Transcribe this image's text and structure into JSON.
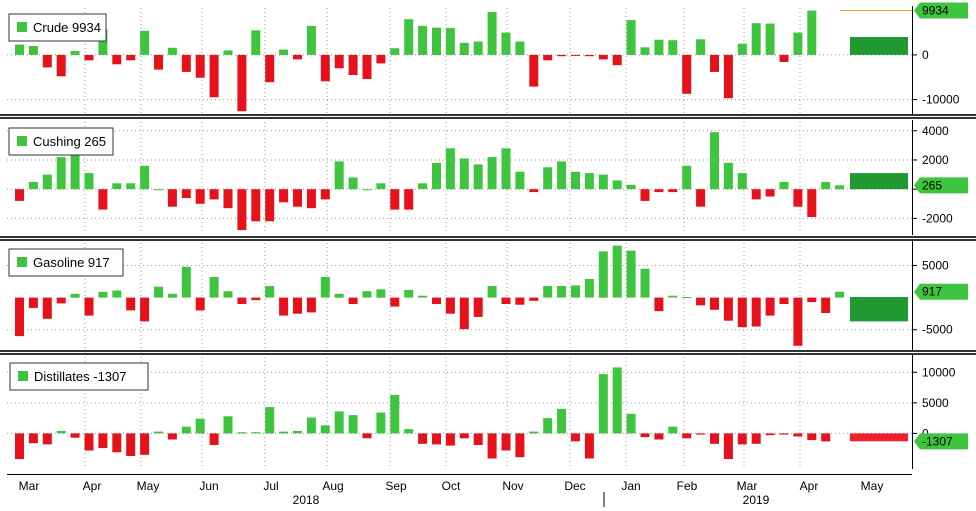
{
  "colors": {
    "positive": "#3ec43e",
    "negative": "#e5111b",
    "latest_positive": "#209a30",
    "latest_negative": "#f0202c",
    "flag": "#3ec43e",
    "separator": "#333333",
    "crude_line": "#f0a020"
  },
  "x_axis": {
    "months": [
      "Mar",
      "Apr",
      "May",
      "Jun",
      "Jul",
      "Aug",
      "Sep",
      "Oct",
      "Nov",
      "Dec",
      "Jan",
      "Feb",
      "Mar",
      "Apr",
      "May"
    ],
    "years": [
      "2018",
      "2019"
    ]
  },
  "chart_data": [
    {
      "type": "bar",
      "name": "crude",
      "legend": "Crude 9934",
      "latest_value": 9934,
      "latest_label": "9934",
      "ylim": [
        -13000,
        10500
      ],
      "yticks": [
        0,
        -10000
      ],
      "ytick_labels": [
        "0",
        "-10000"
      ],
      "values": [
        2300,
        2000,
        -2800,
        -4800,
        900,
        -1200,
        5800,
        -2100,
        -1200,
        5400,
        -3300,
        1600,
        -3800,
        -5100,
        -9500,
        1000,
        -12600,
        5500,
        -6100,
        1200,
        -1000,
        6500,
        -5900,
        -3000,
        -4500,
        -5400,
        -1900,
        1500,
        8000,
        6500,
        6100,
        6000,
        2700,
        3000,
        9600,
        5000,
        3000,
        -7100,
        -1200,
        -300,
        -200,
        -300,
        -1000,
        -2300,
        7800,
        1700,
        3400,
        3300,
        -8700,
        3500,
        -3800,
        -9700,
        2500,
        7100,
        7000,
        -1600,
        5000,
        9934
      ]
    },
    {
      "type": "bar",
      "name": "cushing",
      "legend": "Cushing 265",
      "latest_value": 265,
      "latest_label": "265",
      "ylim": [
        -3000,
        4600
      ],
      "yticks": [
        4000,
        2000,
        0,
        -2000
      ],
      "ytick_labels": [
        "4000",
        "2000",
        "0",
        "-2000"
      ],
      "values": [
        -800,
        500,
        1000,
        2200,
        2700,
        1100,
        -1400,
        400,
        400,
        1600,
        0,
        -1200,
        -600,
        -1000,
        -700,
        -1300,
        -2800,
        -2200,
        -2200,
        -900,
        -1200,
        -1300,
        -700,
        1900,
        800,
        0,
        400,
        -1400,
        -1400,
        400,
        1800,
        2800,
        2100,
        1700,
        2200,
        2800,
        1200,
        -200,
        1500,
        1900,
        1200,
        1100,
        1000,
        600,
        300,
        -800,
        -200,
        -200,
        1600,
        -1200,
        3900,
        1800,
        1100,
        -700,
        -500,
        500,
        -1200,
        -1900,
        500,
        265
      ]
    },
    {
      "type": "bar",
      "name": "gasoline",
      "legend": "Gasoline 917",
      "latest_value": 917,
      "latest_label": "917",
      "ylim": [
        -8000,
        8500
      ],
      "yticks": [
        5000,
        -5000
      ],
      "ytick_labels": [
        "5000",
        "-5000"
      ],
      "values": [
        -6000,
        -1600,
        -3300,
        -900,
        600,
        -2800,
        900,
        1100,
        -2000,
        -3700,
        1700,
        600,
        4800,
        -2000,
        3200,
        1000,
        -1000,
        -400,
        1800,
        -2800,
        -2500,
        -2300,
        3200,
        600,
        -1000,
        1000,
        1300,
        -1400,
        1200,
        300,
        -1000,
        -2500,
        -4900,
        -3000,
        1800,
        -1000,
        -1100,
        -500,
        1800,
        1800,
        1900,
        2900,
        7200,
        8100,
        7300,
        4500,
        -2100,
        300,
        100,
        -1200,
        -1900,
        -3600,
        -4600,
        -4500,
        -2800,
        -1000,
        -7500,
        -700,
        -2400,
        917
      ]
    },
    {
      "type": "bar",
      "name": "distillates",
      "legend": "Distillates -1307",
      "latest_value": -1307,
      "latest_label": "-1307",
      "ylim": [
        -5500,
        12500
      ],
      "yticks": [
        10000,
        5000,
        0
      ],
      "ytick_labels": [
        "10000",
        "5000",
        "0"
      ],
      "values": [
        -4200,
        -1600,
        -1800,
        400,
        -700,
        -2800,
        -2400,
        -3100,
        -3700,
        -3500,
        300,
        -1000,
        1100,
        2400,
        -1900,
        2800,
        200,
        200,
        4300,
        300,
        400,
        2600,
        1300,
        3600,
        3000,
        -800,
        3400,
        6300,
        700,
        -1700,
        -1800,
        -2000,
        -800,
        -1900,
        -4100,
        -2800,
        -3900,
        300,
        2500,
        4000,
        -1300,
        -4100,
        9700,
        10800,
        3200,
        -600,
        -1000,
        1100,
        -800,
        -200,
        -1700,
        -4200,
        -1800,
        -1700,
        -300,
        -200,
        -500,
        -1100,
        -1307
      ]
    }
  ]
}
